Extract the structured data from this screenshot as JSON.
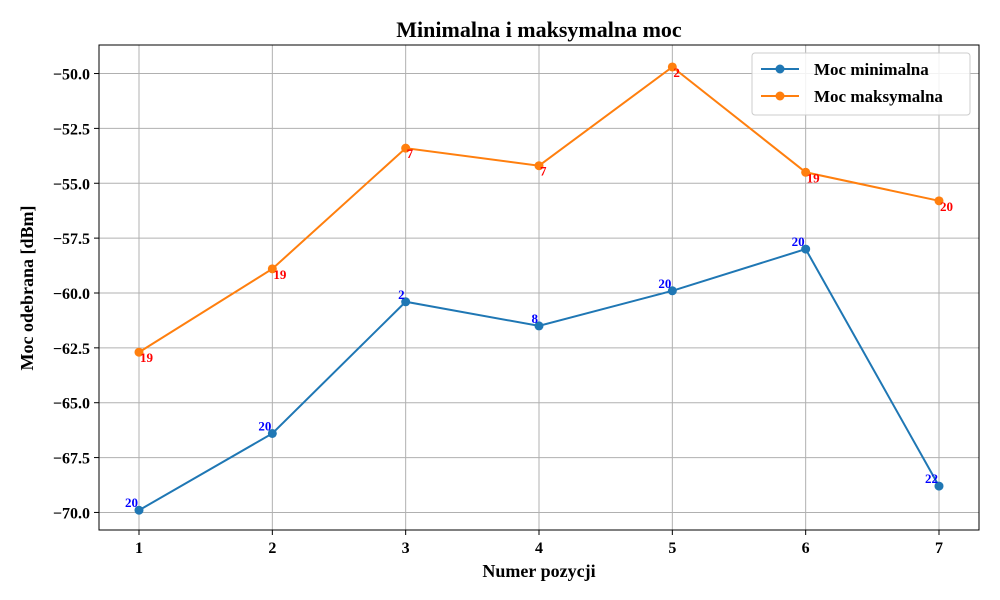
{
  "chart_data": {
    "type": "line",
    "title": "Minimalna i maksymalna moc",
    "xlabel": "Numer pozycji",
    "ylabel": "Moc odebrana [dBm]",
    "x": [
      1,
      2,
      3,
      4,
      5,
      6,
      7
    ],
    "xlim": [
      0.7,
      7.3
    ],
    "ylim": [
      -70.8,
      -48.7
    ],
    "yticks": [
      -70.0,
      -67.5,
      -65.0,
      -62.5,
      -60.0,
      -57.5,
      -55.0,
      -52.5,
      -50.0
    ],
    "ytick_labels": [
      "−70.0",
      "−67.5",
      "−65.0",
      "−62.5",
      "−60.0",
      "−57.5",
      "−55.0",
      "−52.5",
      "−50.0"
    ],
    "xtick_labels": [
      "1",
      "2",
      "3",
      "4",
      "5",
      "6",
      "7"
    ],
    "grid": true,
    "legend_position": "top-right",
    "series": [
      {
        "name": "Moc minimalna",
        "color": "#1f77b4",
        "label_color": "#0000ff",
        "label_position": "above-left",
        "values": [
          -69.9,
          -66.4,
          -60.4,
          -61.5,
          -59.9,
          -58.0,
          -68.8
        ],
        "point_labels": [
          "20",
          "20",
          "2",
          "8",
          "20",
          "20",
          "22"
        ]
      },
      {
        "name": "Moc maksymalna",
        "color": "#ff7f0e",
        "label_color": "#ff0000",
        "label_position": "below-right",
        "values": [
          -62.7,
          -58.9,
          -53.4,
          -54.2,
          -49.7,
          -54.5,
          -55.8
        ],
        "point_labels": [
          "19",
          "19",
          "7",
          "7",
          "2",
          "19",
          "20"
        ]
      }
    ]
  }
}
